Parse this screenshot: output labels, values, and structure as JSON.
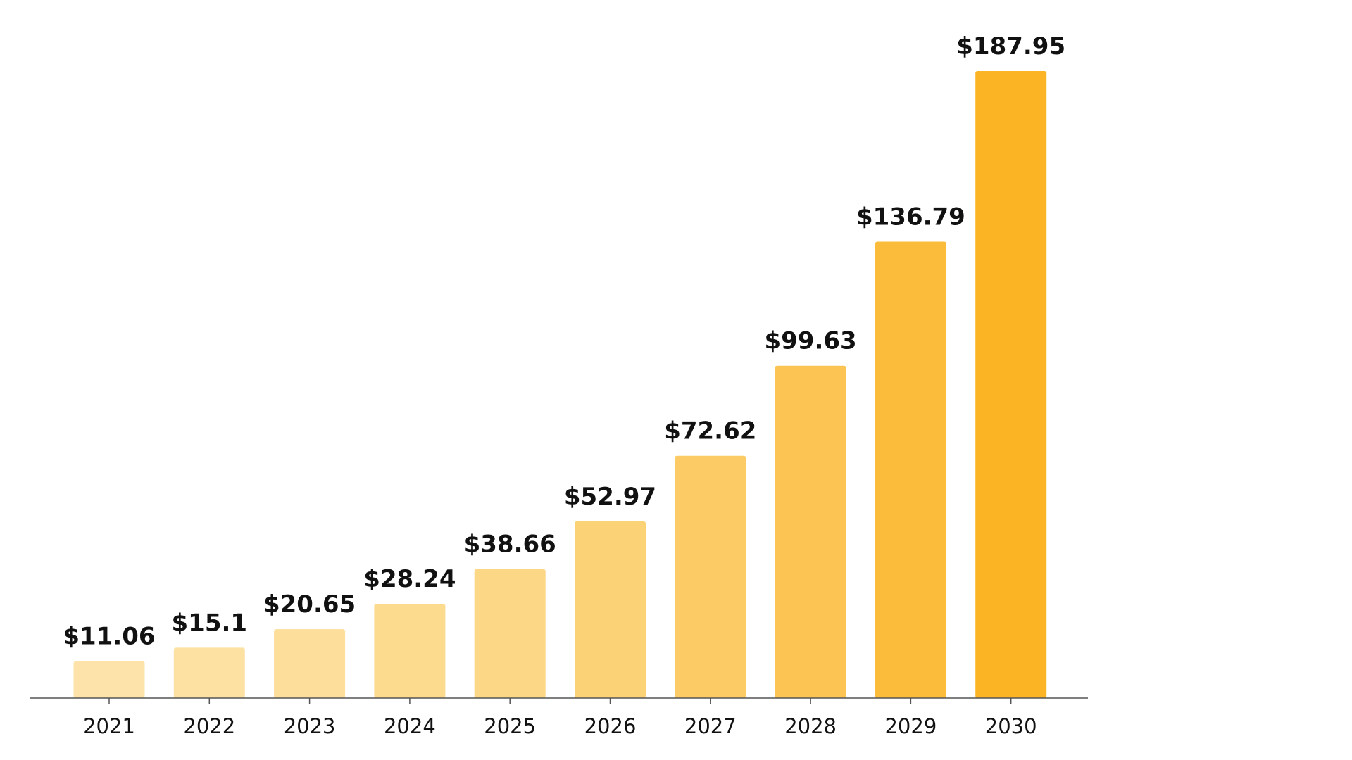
{
  "chart_data": {
    "type": "bar",
    "categories": [
      "2021",
      "2022",
      "2023",
      "2024",
      "2025",
      "2026",
      "2027",
      "2028",
      "2029",
      "2030"
    ],
    "values": [
      11.06,
      15.1,
      20.65,
      28.24,
      38.66,
      52.97,
      72.62,
      99.63,
      136.79,
      187.95
    ],
    "value_labels": [
      "$11.06",
      "$15.1",
      "$20.65",
      "$28.24",
      "$38.66",
      "$52.97",
      "$72.62",
      "$99.63",
      "$136.79",
      "$187.95"
    ],
    "colors": [
      "#FDE3A9",
      "#FDE1A3",
      "#FDDE9A",
      "#FCDA8E",
      "#FCD785",
      "#FCD277",
      "#FCCB66",
      "#FCC553",
      "#FBBC3C",
      "#FBB524"
    ],
    "axis_color": "#555555",
    "ylim": [
      0,
      187.95
    ],
    "grid": false,
    "legend": "none"
  }
}
